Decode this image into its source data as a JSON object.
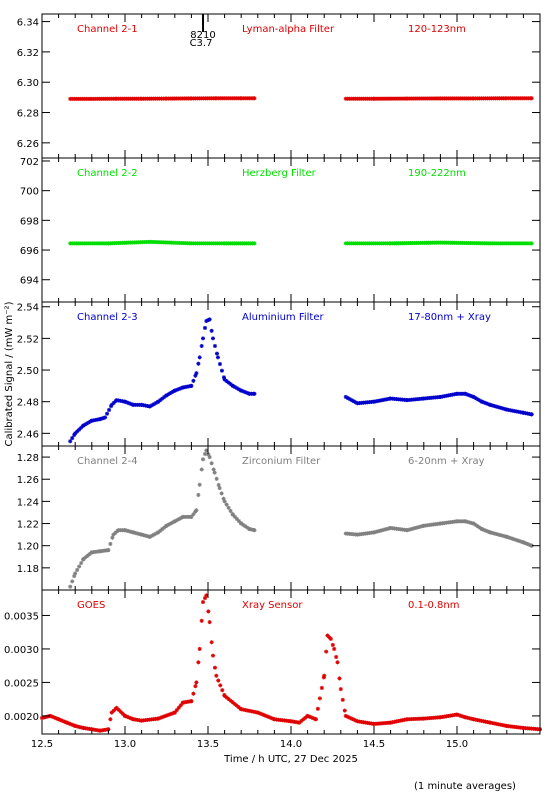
{
  "chart_data": {
    "type": "scatter",
    "xlabel": "Time / h UTC, 27 Dec 2025",
    "ylabel": "Calibrated Signal / (mW m⁻²)",
    "footnote": "(1 minute averages)",
    "xlim": [
      12.5,
      15.5
    ],
    "xticks": [
      12.5,
      13.0,
      13.5,
      14.0,
      14.5,
      15.0
    ],
    "xtick_labels": [
      "12.5",
      "13.0",
      "13.5",
      "14.0",
      "14.5",
      "15.0"
    ],
    "marker": {
      "label_top": "8210",
      "label_bottom": "C3.7",
      "x": 13.47
    },
    "panels": [
      {
        "name": "Channel 2-1",
        "filter": "Lyman-alpha Filter",
        "band": "120-123nm",
        "color": "#e00000",
        "ylim": [
          6.25,
          6.345
        ],
        "yticks": [
          6.26,
          6.28,
          6.3,
          6.32,
          6.34
        ],
        "ytick_labels": [
          "6.26",
          "6.28",
          "6.30",
          "6.32",
          "6.34"
        ],
        "series": [
          {
            "x": [
              12.67,
              12.8,
              12.95,
              13.1,
              13.25,
              13.4,
              13.55,
              13.7,
              13.78
            ],
            "y": [
              6.289,
              6.289,
              6.2891,
              6.2891,
              6.2892,
              6.2893,
              6.2894,
              6.2894,
              6.2894
            ]
          },
          {
            "x": [
              14.33,
              14.5,
              14.7,
              14.9,
              15.1,
              15.3,
              15.45
            ],
            "y": [
              6.2891,
              6.2891,
              6.2892,
              6.2893,
              6.2893,
              6.2894,
              6.2894
            ]
          }
        ]
      },
      {
        "name": "Channel 2-2",
        "filter": "Herzberg Filter",
        "band": "190-222nm",
        "color": "#00dd00",
        "ylim": [
          692.5,
          702.2
        ],
        "yticks": [
          694,
          696,
          698,
          700,
          702
        ],
        "ytick_labels": [
          "694",
          "696",
          "698",
          "700",
          "702"
        ],
        "series": [
          {
            "x": [
              12.67,
              12.9,
              13.15,
              13.4,
              13.6,
              13.78
            ],
            "y": [
              696.45,
              696.45,
              696.55,
              696.45,
              696.45,
              696.45
            ]
          },
          {
            "x": [
              14.33,
              14.6,
              14.9,
              15.2,
              15.45
            ],
            "y": [
              696.45,
              696.45,
              696.5,
              696.45,
              696.45
            ]
          }
        ]
      },
      {
        "name": "Channel 2-3",
        "filter": "Aluminium Filter",
        "band": "17-80nm + Xray",
        "color": "#0000cc",
        "ylim": [
          2.452,
          2.543
        ],
        "yticks": [
          2.46,
          2.48,
          2.5,
          2.52,
          2.54
        ],
        "ytick_labels": [
          "2.46",
          "2.48",
          "2.50",
          "2.52",
          "2.54"
        ],
        "series": [
          {
            "x": [
              12.67,
              12.7,
              12.75,
              12.8,
              12.85,
              12.88,
              12.92,
              12.95,
              13.0,
              13.05,
              13.1,
              13.15,
              13.2,
              13.25,
              13.3,
              13.35,
              13.4,
              13.43,
              13.45,
              13.47,
              13.49,
              13.51,
              13.53,
              13.56,
              13.6,
              13.65,
              13.7,
              13.75,
              13.78
            ],
            "y": [
              2.455,
              2.46,
              2.465,
              2.468,
              2.469,
              2.47,
              2.478,
              2.481,
              2.48,
              2.478,
              2.478,
              2.477,
              2.48,
              2.484,
              2.487,
              2.489,
              2.49,
              2.498,
              2.508,
              2.52,
              2.531,
              2.532,
              2.52,
              2.508,
              2.494,
              2.49,
              2.487,
              2.485,
              2.485
            ]
          },
          {
            "x": [
              14.33,
              14.4,
              14.5,
              14.6,
              14.7,
              14.8,
              14.9,
              15.0,
              15.05,
              15.1,
              15.15,
              15.2,
              15.3,
              15.4,
              15.45
            ],
            "y": [
              2.483,
              2.479,
              2.48,
              2.482,
              2.481,
              2.482,
              2.483,
              2.485,
              2.485,
              2.483,
              2.48,
              2.478,
              2.475,
              2.473,
              2.472
            ]
          }
        ]
      },
      {
        "name": "Channel 2-4",
        "filter": "Zirconium Filter",
        "band": "6-20nm + Xray",
        "color": "#808080",
        "ylim": [
          1.16,
          1.29
        ],
        "yticks": [
          1.18,
          1.2,
          1.22,
          1.24,
          1.26,
          1.28
        ],
        "ytick_labels": [
          "1.18",
          "1.20",
          "1.22",
          "1.24",
          "1.26",
          "1.28"
        ],
        "series": [
          {
            "x": [
              12.67,
              12.7,
              12.75,
              12.8,
              12.85,
              12.9,
              12.93,
              12.96,
              13.0,
              13.05,
              13.1,
              13.15,
              13.2,
              13.25,
              13.3,
              13.35,
              13.4,
              13.43,
              13.45,
              13.47,
              13.49,
              13.51,
              13.54,
              13.57,
              13.6,
              13.65,
              13.7,
              13.75,
              13.78
            ],
            "y": [
              1.163,
              1.175,
              1.188,
              1.194,
              1.195,
              1.196,
              1.21,
              1.214,
              1.214,
              1.212,
              1.21,
              1.208,
              1.212,
              1.218,
              1.222,
              1.226,
              1.226,
              1.232,
              1.255,
              1.278,
              1.286,
              1.28,
              1.266,
              1.252,
              1.24,
              1.228,
              1.22,
              1.215,
              1.214
            ]
          },
          {
            "x": [
              14.33,
              14.4,
              14.5,
              14.6,
              14.7,
              14.8,
              14.9,
              15.0,
              15.05,
              15.1,
              15.15,
              15.2,
              15.3,
              15.4,
              15.45
            ],
            "y": [
              1.211,
              1.21,
              1.212,
              1.216,
              1.214,
              1.218,
              1.22,
              1.222,
              1.222,
              1.22,
              1.215,
              1.212,
              1.208,
              1.203,
              1.2
            ]
          }
        ]
      },
      {
        "name": "GOES",
        "filter": "Xray Sensor",
        "band": "0.1-0.8nm",
        "color": "#e00000",
        "ylim": [
          0.00173,
          0.00388
        ],
        "yticks": [
          0.002,
          0.0025,
          0.003,
          0.0035
        ],
        "ytick_labels": [
          "0.0020",
          "0.0025",
          "0.0030",
          "0.0035"
        ],
        "series": [
          {
            "x": [
              12.5,
              12.55,
              12.6,
              12.65,
              12.7,
              12.75,
              12.8,
              12.85,
              12.9,
              12.92,
              12.95,
              13.0,
              13.05,
              13.1,
              13.2,
              13.3,
              13.35,
              13.4,
              13.43,
              13.45,
              13.47,
              13.49,
              13.51,
              13.53,
              13.55,
              13.6,
              13.7,
              13.8,
              13.9,
              14.0,
              14.05,
              14.1,
              14.15,
              14.2,
              14.22,
              14.24,
              14.26,
              14.28,
              14.3,
              14.33,
              14.4,
              14.5,
              14.6,
              14.7,
              14.8,
              14.9,
              15.0,
              15.05,
              15.1,
              15.2,
              15.3,
              15.4,
              15.5
            ],
            "y": [
              0.00197,
              0.002,
              0.00195,
              0.0019,
              0.00185,
              0.00182,
              0.0018,
              0.00178,
              0.0018,
              0.00205,
              0.00212,
              0.002,
              0.00195,
              0.00193,
              0.00196,
              0.00205,
              0.0022,
              0.00222,
              0.0025,
              0.003,
              0.0037,
              0.0038,
              0.0034,
              0.0029,
              0.0026,
              0.0023,
              0.0021,
              0.00205,
              0.00195,
              0.00192,
              0.0019,
              0.002,
              0.00195,
              0.0026,
              0.0032,
              0.00315,
              0.003,
              0.0028,
              0.0024,
              0.002,
              0.00192,
              0.00188,
              0.0019,
              0.00195,
              0.00196,
              0.00198,
              0.00202,
              0.00198,
              0.00195,
              0.0019,
              0.00185,
              0.00182,
              0.0018
            ]
          }
        ]
      }
    ]
  }
}
